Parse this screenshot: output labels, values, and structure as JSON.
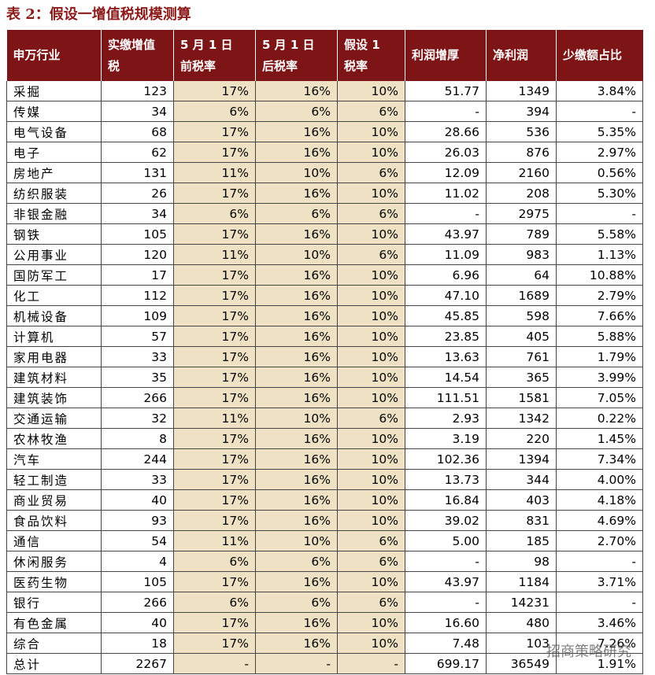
{
  "header": {
    "title": "表 2：假设一增值税规模测算"
  },
  "table": {
    "columns": [
      [
        "申万行业"
      ],
      [
        "实缴增值",
        "税"
      ],
      [
        "5 月 1 日",
        "前税率"
      ],
      [
        "5 月 1 日",
        "后税率"
      ],
      [
        "假设 1",
        "税率"
      ],
      [
        "利润增厚"
      ],
      [
        "净利润"
      ],
      [
        "少缴额占比"
      ]
    ],
    "rows": [
      [
        "采掘",
        "123",
        "17%",
        "16%",
        "10%",
        "51.77",
        "1349",
        "3.84%"
      ],
      [
        "传媒",
        "34",
        "6%",
        "6%",
        "6%",
        "-",
        "394",
        "-"
      ],
      [
        "电气设备",
        "68",
        "17%",
        "16%",
        "10%",
        "28.66",
        "536",
        "5.35%"
      ],
      [
        "电子",
        "62",
        "17%",
        "16%",
        "10%",
        "26.03",
        "876",
        "2.97%"
      ],
      [
        "房地产",
        "131",
        "11%",
        "10%",
        "6%",
        "12.09",
        "2160",
        "0.56%"
      ],
      [
        "纺织服装",
        "26",
        "17%",
        "16%",
        "10%",
        "11.02",
        "208",
        "5.30%"
      ],
      [
        "非银金融",
        "34",
        "6%",
        "6%",
        "6%",
        "-",
        "2975",
        "-"
      ],
      [
        "钢铁",
        "105",
        "17%",
        "16%",
        "10%",
        "43.97",
        "789",
        "5.58%"
      ],
      [
        "公用事业",
        "120",
        "11%",
        "10%",
        "6%",
        "11.09",
        "983",
        "1.13%"
      ],
      [
        "国防军工",
        "17",
        "17%",
        "16%",
        "10%",
        "6.96",
        "64",
        "10.88%"
      ],
      [
        "化工",
        "112",
        "17%",
        "16%",
        "10%",
        "47.10",
        "1689",
        "2.79%"
      ],
      [
        "机械设备",
        "109",
        "17%",
        "16%",
        "10%",
        "45.85",
        "598",
        "7.66%"
      ],
      [
        "计算机",
        "57",
        "17%",
        "16%",
        "10%",
        "23.85",
        "405",
        "5.88%"
      ],
      [
        "家用电器",
        "33",
        "17%",
        "16%",
        "10%",
        "13.63",
        "761",
        "1.79%"
      ],
      [
        "建筑材料",
        "35",
        "17%",
        "16%",
        "10%",
        "14.54",
        "365",
        "3.99%"
      ],
      [
        "建筑装饰",
        "266",
        "17%",
        "16%",
        "10%",
        "111.51",
        "1581",
        "7.05%"
      ],
      [
        "交通运输",
        "32",
        "11%",
        "10%",
        "6%",
        "2.93",
        "1342",
        "0.22%"
      ],
      [
        "农林牧渔",
        "8",
        "17%",
        "16%",
        "10%",
        "3.19",
        "220",
        "1.45%"
      ],
      [
        "汽车",
        "244",
        "17%",
        "16%",
        "10%",
        "102.36",
        "1394",
        "7.34%"
      ],
      [
        "轻工制造",
        "33",
        "17%",
        "16%",
        "10%",
        "13.73",
        "344",
        "4.00%"
      ],
      [
        "商业贸易",
        "40",
        "17%",
        "16%",
        "10%",
        "16.84",
        "403",
        "4.18%"
      ],
      [
        "食品饮料",
        "93",
        "17%",
        "16%",
        "10%",
        "39.02",
        "831",
        "4.69%"
      ],
      [
        "通信",
        "54",
        "11%",
        "10%",
        "6%",
        "5.00",
        "185",
        "2.70%"
      ],
      [
        "休闲服务",
        "4",
        "6%",
        "6%",
        "6%",
        "-",
        "98",
        "-"
      ],
      [
        "医药生物",
        "105",
        "17%",
        "16%",
        "10%",
        "43.97",
        "1184",
        "3.71%"
      ],
      [
        "银行",
        "266",
        "6%",
        "6%",
        "6%",
        "-",
        "14231",
        "-"
      ],
      [
        "有色金属",
        "40",
        "17%",
        "16%",
        "10%",
        "16.60",
        "480",
        "3.46%"
      ],
      [
        "综合",
        "18",
        "17%",
        "16%",
        "10%",
        "7.48",
        "103",
        "7.26%"
      ],
      [
        "总计",
        "2267",
        "-",
        "-",
        "-",
        "699.17",
        "36549",
        "1.91%"
      ]
    ]
  },
  "watermark": "招商策略研究"
}
